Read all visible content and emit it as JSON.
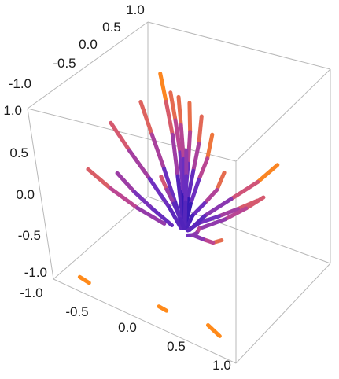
{
  "chart_data": {
    "type": "streamplot3d",
    "title": "",
    "xlabel": "",
    "ylabel": "",
    "zlabel": "",
    "xlim": [
      -1,
      1
    ],
    "ylim": [
      -1,
      1
    ],
    "zlim": [
      -1,
      1
    ],
    "grid": false,
    "box": true,
    "colormap": [
      "#1f0fb0",
      "#7030c0",
      "#c84a8a",
      "#ff8a1a"
    ],
    "ticks": {
      "back_top": [
        "1.0",
        "0.5",
        "0.0",
        "-0.5",
        "-1.0"
      ],
      "left_vertical": [
        "1.0",
        "0.5",
        "0.0",
        "-0.5",
        "-1.0"
      ],
      "bottom_front": [
        "-1.0",
        "-0.5",
        "0.0",
        "0.5",
        "1.0"
      ]
    },
    "streamlines": [
      {
        "points": [
          [
            -0.35,
            0.55,
            0.98
          ],
          [
            -0.3,
            0.5,
            0.7
          ],
          [
            -0.22,
            0.4,
            0.4
          ],
          [
            -0.12,
            0.22,
            0.05
          ],
          [
            -0.03,
            0.05,
            -0.3
          ]
        ]
      },
      {
        "points": [
          [
            -0.2,
            0.45,
            0.88
          ],
          [
            -0.16,
            0.4,
            0.6
          ],
          [
            -0.1,
            0.3,
            0.3
          ],
          [
            -0.04,
            0.15,
            -0.05
          ],
          [
            0.0,
            0.03,
            -0.38
          ]
        ]
      },
      {
        "points": [
          [
            -0.05,
            0.35,
            0.95
          ],
          [
            -0.04,
            0.3,
            0.65
          ],
          [
            -0.02,
            0.22,
            0.3
          ],
          [
            0.0,
            0.1,
            -0.05
          ],
          [
            0.01,
            0.02,
            -0.4
          ]
        ]
      },
      {
        "points": [
          [
            0.1,
            0.3,
            0.98
          ],
          [
            0.08,
            0.26,
            0.65
          ],
          [
            0.05,
            0.18,
            0.3
          ],
          [
            0.02,
            0.08,
            -0.05
          ],
          [
            0.01,
            0.01,
            -0.38
          ]
        ]
      },
      {
        "points": [
          [
            0.25,
            0.25,
            0.92
          ],
          [
            0.2,
            0.2,
            0.6
          ],
          [
            0.13,
            0.13,
            0.28
          ],
          [
            0.06,
            0.06,
            -0.05
          ],
          [
            0.01,
            0.01,
            -0.35
          ]
        ]
      },
      {
        "points": [
          [
            0.5,
            0.0,
            0.95
          ],
          [
            0.4,
            0.0,
            0.62
          ],
          [
            0.26,
            0.0,
            0.3
          ],
          [
            0.12,
            0.0,
            -0.05
          ],
          [
            0.02,
            0.0,
            -0.35
          ]
        ]
      },
      {
        "points": [
          [
            0.7,
            -0.2,
            0.7
          ],
          [
            0.55,
            -0.15,
            0.4
          ],
          [
            0.35,
            -0.1,
            0.12
          ],
          [
            0.15,
            -0.04,
            -0.15
          ],
          [
            0.03,
            -0.01,
            -0.38
          ]
        ]
      },
      {
        "points": [
          [
            -0.6,
            0.5,
            0.55
          ],
          [
            -0.45,
            0.38,
            0.3
          ],
          [
            -0.28,
            0.24,
            0.05
          ],
          [
            -0.12,
            0.1,
            -0.2
          ],
          [
            -0.03,
            0.02,
            -0.4
          ]
        ]
      },
      {
        "points": [
          [
            -0.8,
            0.2,
            0.35
          ],
          [
            -0.6,
            0.15,
            0.15
          ],
          [
            -0.38,
            0.1,
            -0.05
          ],
          [
            -0.16,
            0.04,
            -0.25
          ],
          [
            -0.04,
            0.01,
            -0.42
          ]
        ]
      },
      {
        "points": [
          [
            0.85,
            0.1,
            0.3
          ],
          [
            0.62,
            0.08,
            0.1
          ],
          [
            0.4,
            0.05,
            -0.08
          ],
          [
            0.18,
            0.02,
            -0.25
          ],
          [
            0.04,
            0.0,
            -0.4
          ]
        ]
      },
      {
        "points": [
          [
            0.9,
            0.5,
            0.55
          ],
          [
            0.7,
            0.4,
            0.3
          ],
          [
            0.45,
            0.25,
            0.05
          ],
          [
            0.2,
            0.1,
            -0.2
          ],
          [
            0.05,
            0.02,
            -0.4
          ]
        ]
      },
      {
        "points": [
          [
            -0.5,
            -0.3,
            0.15
          ],
          [
            -0.38,
            -0.22,
            -0.05
          ],
          [
            -0.25,
            -0.14,
            -0.22
          ],
          [
            -0.1,
            -0.06,
            -0.38
          ]
        ]
      },
      {
        "points": [
          [
            0.5,
            -0.5,
            0.1
          ],
          [
            0.38,
            -0.38,
            -0.08
          ],
          [
            0.24,
            -0.24,
            -0.24
          ],
          [
            0.08,
            -0.08,
            -0.4
          ]
        ]
      },
      {
        "points": [
          [
            -0.15,
            0.5,
            0.2
          ],
          [
            -0.1,
            0.35,
            0.0
          ],
          [
            -0.05,
            0.18,
            -0.2
          ],
          [
            -0.01,
            0.04,
            -0.38
          ]
        ]
      },
      {
        "points": [
          [
            0.2,
            -0.6,
            0.6
          ],
          [
            0.15,
            -0.45,
            0.35
          ],
          [
            0.1,
            -0.28,
            0.08
          ],
          [
            0.04,
            -0.1,
            -0.22
          ],
          [
            0.01,
            -0.02,
            -0.38
          ]
        ]
      },
      {
        "points": [
          [
            0.8,
            -0.6,
            0.15
          ],
          [
            0.6,
            -0.45,
            -0.05
          ],
          [
            0.38,
            -0.28,
            -0.2
          ],
          [
            0.15,
            -0.1,
            -0.35
          ]
        ]
      },
      {
        "points": [
          [
            -0.9,
            -0.2,
            -0.05
          ],
          [
            -0.7,
            -0.15,
            -0.2
          ],
          [
            -0.45,
            -0.1,
            -0.33
          ],
          [
            -0.2,
            -0.04,
            -0.42
          ]
        ]
      },
      {
        "points": [
          [
            0.55,
            0.7,
            -0.1
          ],
          [
            0.42,
            0.55,
            -0.22
          ],
          [
            0.28,
            0.35,
            -0.32
          ],
          [
            0.12,
            0.15,
            -0.4
          ]
        ]
      }
    ],
    "fragments": [
      {
        "points": [
          [
            -0.75,
            -0.9,
            -0.9
          ],
          [
            -0.65,
            -0.9,
            -0.92
          ]
        ]
      },
      {
        "points": [
          [
            0.1,
            -0.85,
            -0.85
          ],
          [
            0.15,
            -0.8,
            -0.9
          ]
        ]
      },
      {
        "points": [
          [
            0.55,
            -0.7,
            -0.92
          ],
          [
            0.7,
            -0.75,
            -0.95
          ]
        ]
      }
    ]
  }
}
